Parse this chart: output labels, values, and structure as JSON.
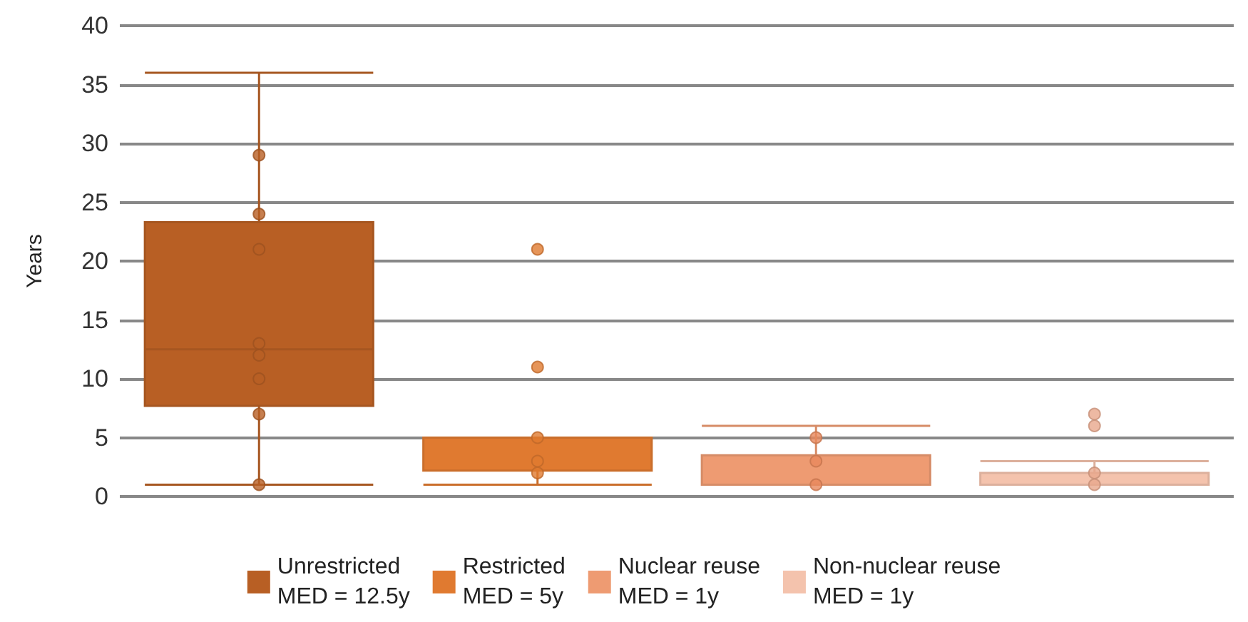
{
  "chart_data": {
    "type": "box",
    "ylabel": "Years",
    "categories": [
      null,
      null,
      null,
      null
    ],
    "ylim": [
      0,
      40
    ],
    "yticks": [
      0,
      5,
      10,
      15,
      20,
      25,
      30,
      35,
      40
    ],
    "grid": "y",
    "legend": "bottom",
    "marker": "circle",
    "series": [
      {
        "name": "Unrestricted\nMED = 12.5y",
        "color": "#b85f24",
        "boxes": [
          {
            "low": 1,
            "q1": 7.7,
            "median": 12.5,
            "q3": 23.3,
            "high": 36
          },
          null,
          null,
          null
        ]
      },
      {
        "name": "Restricted\nMED = 5y",
        "color": "#e07a30",
        "boxes": [
          null,
          {
            "low": 1,
            "q1": 2.2,
            "median": 5,
            "q3": 5,
            "high": 5
          },
          null,
          null
        ]
      },
      {
        "name": "Nuclear reuse\nMED = 1y",
        "color": "#ee9b72",
        "boxes": [
          null,
          null,
          {
            "low": 1,
            "q1": 1,
            "median": 1,
            "q3": 3.5,
            "high": 6
          },
          null
        ]
      },
      {
        "name": "Non-nuclear reuse\nMED = 1y",
        "color": "#f4c3ad",
        "boxes": [
          null,
          null,
          null,
          {
            "low": 1,
            "q1": 1,
            "median": 1,
            "q3": 2,
            "high": 3
          }
        ]
      },
      {
        "type": "scatter",
        "values": [
          29,
          21,
          5,
          7
        ],
        "colors": [
          "#b85f24",
          "#e07a30",
          "#e8885c",
          "#e8a78c"
        ]
      },
      {
        "type": "scatter",
        "values": [
          24,
          11,
          3,
          6
        ],
        "colors": [
          "#b85f24",
          "#e07a30",
          "#e8885c",
          "#e8a78c"
        ]
      },
      {
        "type": "scatter",
        "values": [
          21,
          5,
          1,
          2
        ],
        "colors": [
          "#b85f24",
          "#e07a30",
          "#e8885c",
          "#e8a78c"
        ]
      },
      {
        "type": "scatter",
        "values": [
          13,
          3,
          null,
          1
        ],
        "colors": [
          "#b85f24",
          "#e07a30",
          "#e8885c",
          "#e8a78c"
        ]
      },
      {
        "type": "scatter",
        "values": [
          12,
          2,
          null,
          null
        ],
        "colors": [
          "#b85f24",
          "#e07a30",
          "#e8885c",
          "#e8a78c"
        ]
      },
      {
        "type": "scatter",
        "values": [
          10,
          null,
          null,
          null
        ],
        "colors": [
          "#b85f24",
          "#e07a30",
          "#e8885c",
          "#e8a78c"
        ]
      },
      {
        "type": "scatter",
        "values": [
          7,
          null,
          null,
          null
        ],
        "colors": [
          "#b85f24",
          "#e07a30",
          "#e8885c",
          "#e8a78c"
        ]
      },
      {
        "type": "scatter",
        "values": [
          1,
          null,
          null,
          null
        ],
        "colors": [
          "#b85f24",
          "#e07a30",
          "#e8885c",
          "#e8a78c"
        ]
      }
    ]
  }
}
